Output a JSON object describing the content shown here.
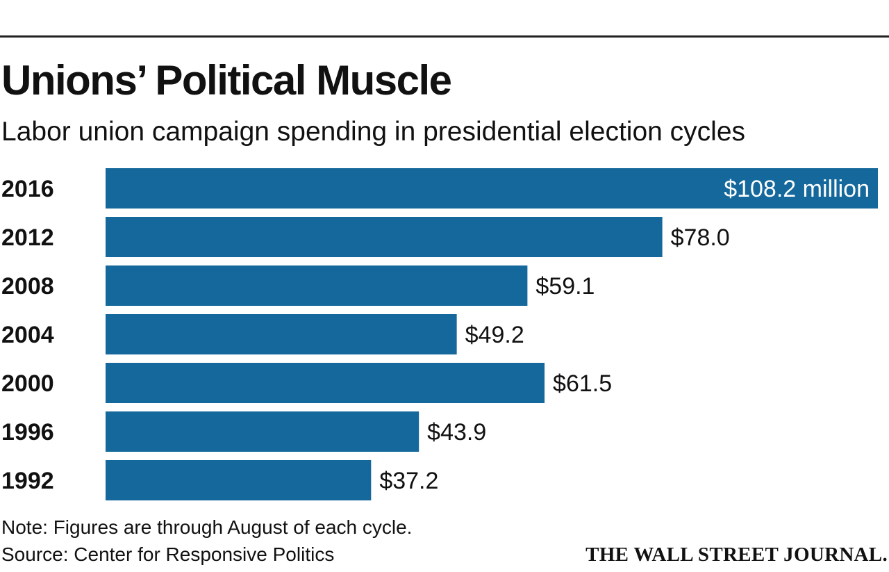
{
  "header": {
    "title": "Unions’ Political Muscle",
    "subtitle": "Labor union campaign spending in presidential election cycles"
  },
  "chart_data": {
    "type": "bar",
    "orientation": "horizontal",
    "title": "Unions’ Political Muscle",
    "subtitle": "Labor union campaign spending in presidential election cycles",
    "unit": "million dollars",
    "categories": [
      "2016",
      "2012",
      "2008",
      "2004",
      "2000",
      "1996",
      "1992"
    ],
    "values": [
      108.2,
      78.0,
      59.1,
      49.2,
      61.5,
      43.9,
      37.2
    ],
    "value_labels": [
      "$108.2 million",
      "$78.0",
      "$59.1",
      "$49.2",
      "$61.5",
      "$43.9",
      "$37.2"
    ],
    "xlim": [
      0,
      108.2
    ],
    "grid": false,
    "bar_color": "#14689b"
  },
  "footer": {
    "note": "Note: Figures are through August of each cycle.",
    "source": "Source: Center for Responsive Politics",
    "publisher": "THE WALL STREET JOURNAL."
  }
}
